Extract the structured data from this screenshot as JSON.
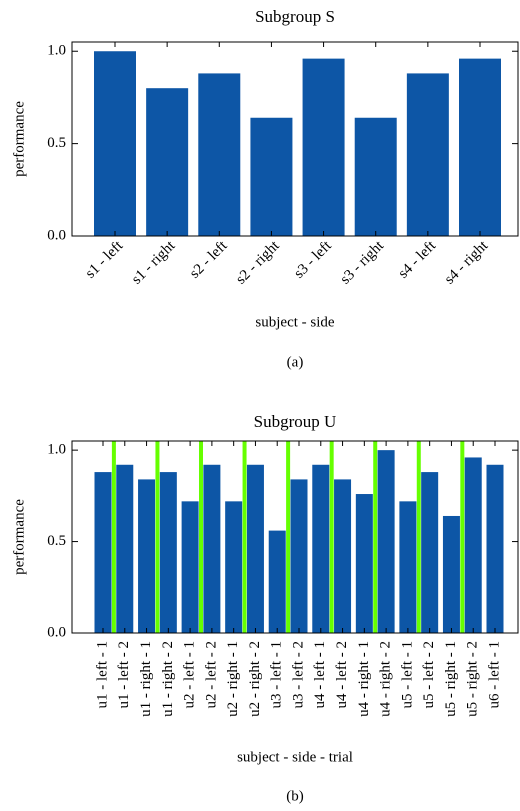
{
  "chart_data": [
    {
      "type": "bar",
      "title": "Subgroup S",
      "y_label": "performance",
      "x_label": "subject - side",
      "caption": "(a)",
      "categories": [
        "s1 - left",
        "s1 - right",
        "s2 - left",
        "s2 - right",
        "s3 - left",
        "s3 - right",
        "s4 - left",
        "s4 - right"
      ],
      "values": [
        1.0,
        0.8,
        0.88,
        0.64,
        0.96,
        0.64,
        0.88,
        0.96
      ],
      "color": "#0d56a6",
      "ylim": [
        0,
        1.05
      ],
      "yticks": [
        {
          "value": 0,
          "label": "0.0"
        },
        0.5,
        {
          "value": 1,
          "label": "1.0"
        }
      ]
    },
    {
      "type": "bar",
      "title": "Subgroup U",
      "y_label": "performance",
      "x_label": "subject - side - trial",
      "caption": "(b)",
      "categories": [
        "u1 - left - 1",
        "u1 - left - 2",
        "u1 - right - 1",
        "u1 - right - 2",
        "u2 - left - 1",
        "u2 - left - 2",
        "u2 - right - 1",
        "u2 - right - 2",
        "u3 - left - 1",
        "u3 - left - 2",
        "u4 - left - 1",
        "u4 - left - 2",
        "u4 - right - 1",
        "u4 - right - 2",
        "u5 - left - 1",
        "u5 - left - 2",
        "u5 - right - 1",
        "u5 - right - 2",
        "u6 - left - 1"
      ],
      "values": [
        0.88,
        0.92,
        0.84,
        0.88,
        0.72,
        0.92,
        0.72,
        0.92,
        0.56,
        0.84,
        0.92,
        0.84,
        0.76,
        1.0,
        0.72,
        0.88,
        0.64,
        0.96,
        0.92
      ],
      "color": "#0d56a6",
      "separator_color": "#66ff00",
      "ylim": [
        0,
        1.05
      ],
      "yticks": [
        {
          "value": 0,
          "label": "0.0"
        },
        0.5,
        {
          "value": 1,
          "label": "1.0"
        }
      ]
    }
  ]
}
